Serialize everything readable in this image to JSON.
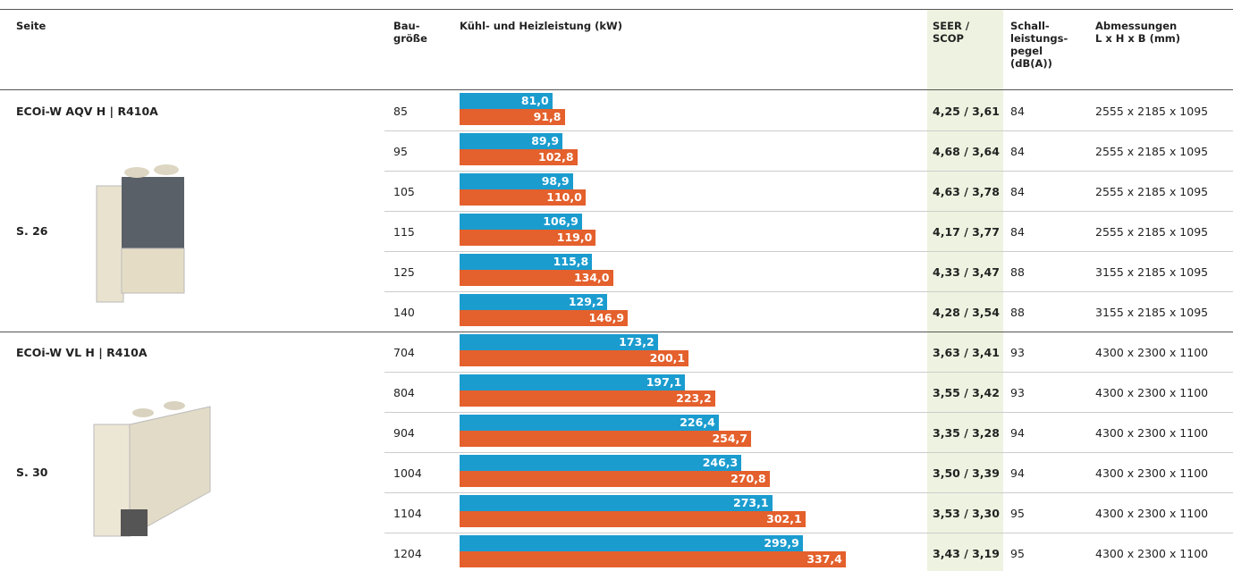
{
  "header": {
    "columns": [
      "Seite",
      "Bau-\ngröße",
      "Kühl- und Heizleistung (kW)",
      "SEER /\nSCOP",
      "Schall-\nleistungs-\npegel\n(dB(A))",
      "Abmessungen\nL x H x B (mm)"
    ]
  },
  "groups": [
    {
      "name": "ECOi-W AQV H | R410A",
      "page": "S. 26",
      "rows": [
        {
          "size": 85,
          "cooling": {
            "value": 81.0,
            "label": "81,0"
          },
          "heating": {
            "value": 91.8,
            "label": "91,8"
          },
          "seer_scop": "4,25 / 3,61",
          "sound": 84,
          "dimensions": "2555 x 2185 x 1095"
        },
        {
          "size": 95,
          "cooling": {
            "value": 89.9,
            "label": "89,9"
          },
          "heating": {
            "value": 102.8,
            "label": "102,8"
          },
          "seer_scop": "4,68 / 3,64",
          "sound": 84,
          "dimensions": "2555 x 2185 x 1095"
        },
        {
          "size": 105,
          "cooling": {
            "value": 98.9,
            "label": "98,9"
          },
          "heating": {
            "value": 110.0,
            "label": "110,0"
          },
          "seer_scop": "4,63 / 3,78",
          "sound": 84,
          "dimensions": "2555 x 2185 x 1095"
        },
        {
          "size": 115,
          "cooling": {
            "value": 106.9,
            "label": "106,9"
          },
          "heating": {
            "value": 119.0,
            "label": "119,0"
          },
          "seer_scop": "4,17 / 3,77",
          "sound": 84,
          "dimensions": "2555 x 2185 x 1095"
        },
        {
          "size": 125,
          "cooling": {
            "value": 115.8,
            "label": "115,8"
          },
          "heating": {
            "value": 134.0,
            "label": "134,0"
          },
          "seer_scop": "4,33 / 3,47",
          "sound": 88,
          "dimensions": "3155 x 2185 x 1095"
        },
        {
          "size": 140,
          "cooling": {
            "value": 129.2,
            "label": "129,2"
          },
          "heating": {
            "value": 146.9,
            "label": "146,9"
          },
          "seer_scop": "4,28 / 3,54",
          "sound": 88,
          "dimensions": "3155 x 2185 x 1095"
        }
      ]
    },
    {
      "name": "ECOi-W VL H | R410A",
      "page": "S. 30",
      "rows": [
        {
          "size": 704,
          "cooling": {
            "value": 173.2,
            "label": "173,2"
          },
          "heating": {
            "value": 200.1,
            "label": "200,1"
          },
          "seer_scop": "3,63 / 3,41",
          "sound": 93,
          "dimensions": "4300 x 2300 x 1100"
        },
        {
          "size": 804,
          "cooling": {
            "value": 197.1,
            "label": "197,1"
          },
          "heating": {
            "value": 223.2,
            "label": "223,2"
          },
          "seer_scop": "3,55 / 3,42",
          "sound": 93,
          "dimensions": "4300 x 2300 x 1100"
        },
        {
          "size": 904,
          "cooling": {
            "value": 226.4,
            "label": "226,4"
          },
          "heating": {
            "value": 254.7,
            "label": "254,7"
          },
          "seer_scop": "3,35 / 3,28",
          "sound": 94,
          "dimensions": "4300 x 2300 x 1100"
        },
        {
          "size": 1004,
          "cooling": {
            "value": 246.3,
            "label": "246,3"
          },
          "heating": {
            "value": 270.8,
            "label": "270,8"
          },
          "seer_scop": "3,50 / 3,39",
          "sound": 94,
          "dimensions": "4300 x 2300 x 1100"
        },
        {
          "size": 1104,
          "cooling": {
            "value": 273.1,
            "label": "273,1"
          },
          "heating": {
            "value": 302.1,
            "label": "302,1"
          },
          "seer_scop": "3,53 / 3,30",
          "sound": 95,
          "dimensions": "4300 x 2300 x 1100"
        },
        {
          "size": 1204,
          "cooling": {
            "value": 299.9,
            "label": "299,9"
          },
          "heating": {
            "value": 337.4,
            "label": "337,4"
          },
          "seer_scop": "3,43 / 3,19",
          "sound": 95,
          "dimensions": "4300 x 2300 x 1100"
        }
      ]
    }
  ]
}
